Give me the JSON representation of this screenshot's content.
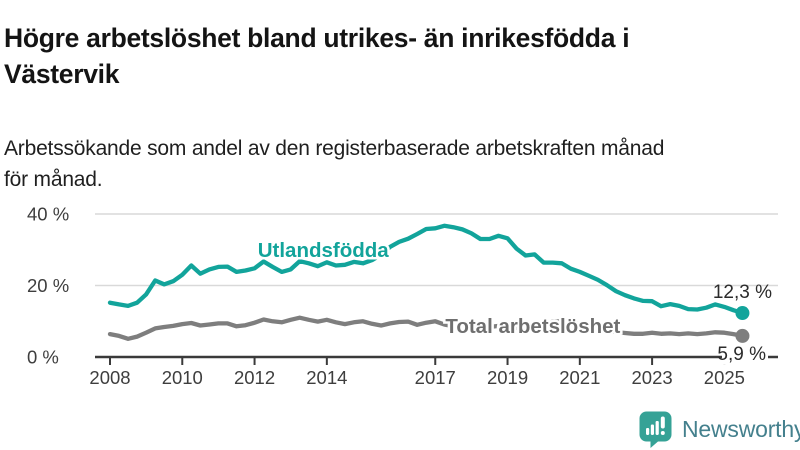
{
  "header": {
    "title": "Högre arbetslöshet bland utrikes- än inrikesfödda i\nVästervik",
    "subtitle": "Arbetssökande som andel av den registerbaserade arbetskraften månad\nför månad."
  },
  "chart_data": {
    "type": "line",
    "x_start": 2008.0,
    "x_step": 0.25,
    "x_end": 2025.5,
    "ylim": [
      0,
      44
    ],
    "grid": "horizontal",
    "yticks": [
      {
        "value": 0,
        "label": "0 %"
      },
      {
        "value": 20,
        "label": "20 %"
      },
      {
        "value": 40,
        "label": "40 %"
      }
    ],
    "xticks": [
      {
        "value": 2008,
        "label": "2008"
      },
      {
        "value": 2010,
        "label": "2010"
      },
      {
        "value": 2012,
        "label": "2012"
      },
      {
        "value": 2014,
        "label": "2014"
      },
      {
        "value": 2017,
        "label": "2017"
      },
      {
        "value": 2019,
        "label": "2019"
      },
      {
        "value": 2021,
        "label": "2021"
      },
      {
        "value": 2023,
        "label": "2023"
      },
      {
        "value": 2025,
        "label": "2025"
      }
    ],
    "series": [
      {
        "name": "Utlandsfödda",
        "color": "#12a49b",
        "label_color": "#12a49b",
        "label_x": 2013.9,
        "label_y": 29.9,
        "end_label": "12,3 %",
        "end_value": 12.3,
        "values": [
          15.2,
          14.7,
          14.3,
          15.2,
          17.5,
          21.4,
          20.3,
          21.2,
          23.0,
          25.6,
          23.3,
          24.5,
          25.2,
          25.3,
          23.8,
          24.2,
          24.8,
          26.7,
          25.2,
          23.8,
          24.5,
          26.8,
          26.2,
          25.4,
          26.5,
          25.6,
          25.8,
          26.6,
          26.2,
          27.1,
          28.6,
          30.8,
          32.2,
          33.1,
          34.4,
          35.8,
          36.0,
          36.7,
          36.3,
          35.7,
          34.6,
          33.0,
          33.0,
          33.9,
          33.2,
          30.3,
          28.4,
          28.7,
          26.4,
          26.4,
          26.2,
          24.7,
          23.8,
          22.7,
          21.6,
          20.1,
          18.4,
          17.3,
          16.4,
          15.7,
          15.6,
          14.2,
          14.8,
          14.3,
          13.4,
          13.3,
          13.8,
          14.7,
          14.0,
          13.1,
          12.3
        ]
      },
      {
        "name": "Total arbetslöshet",
        "color": "#7e7e7e",
        "label_color": "#6f6f6f",
        "label_x": 2019.7,
        "label_y": 8.7,
        "end_label": "5,9 %",
        "end_value": 5.9,
        "values": [
          6.4,
          5.9,
          5.1,
          5.7,
          6.8,
          8.0,
          8.4,
          8.7,
          9.2,
          9.5,
          8.8,
          9.1,
          9.4,
          9.4,
          8.6,
          8.9,
          9.6,
          10.5,
          10.0,
          9.7,
          10.4,
          11.0,
          10.4,
          9.9,
          10.4,
          9.7,
          9.2,
          9.7,
          10.0,
          9.3,
          8.8,
          9.4,
          9.8,
          9.9,
          9.0,
          9.6,
          10.0,
          9.1,
          8.6,
          9.1,
          9.0,
          8.4,
          8.4,
          8.7,
          8.6,
          8.1,
          8.2,
          8.5,
          8.8,
          9.9,
          10.0,
          9.5,
          9.2,
          8.6,
          8.0,
          7.4,
          7.0,
          6.7,
          6.5,
          6.5,
          6.8,
          6.5,
          6.6,
          6.4,
          6.6,
          6.4,
          6.6,
          6.9,
          6.8,
          6.4,
          5.9
        ]
      }
    ],
    "colors": {
      "grid": "#d9d9d9",
      "axis": "#3a3a3a",
      "tick_label": "#3e3e3e",
      "end_label": "#2b2b2b"
    }
  },
  "footer": {
    "brand": "Newsworthy",
    "logo_icon": "bar-chart-speech-bubble-icon",
    "icon_color": "#35a296",
    "text_color": "#44808d"
  }
}
